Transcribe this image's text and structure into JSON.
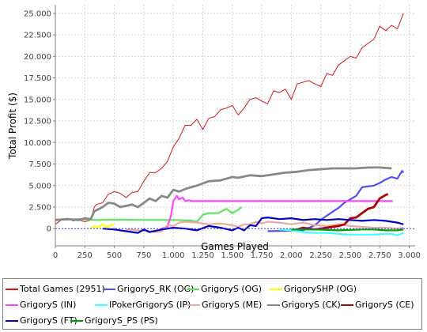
{
  "chart_data": {
    "type": "line",
    "title": "",
    "xlabel": "Games Played",
    "ylabel": "Total Profit ($)",
    "xlim": [
      0,
      3050
    ],
    "ylim": [
      -2000,
      26000
    ],
    "x_ticks": [
      0,
      250,
      500,
      750,
      1000,
      1250,
      1500,
      1750,
      2000,
      2250,
      2500,
      2750,
      3000
    ],
    "x_tick_labels": [
      "0",
      "250",
      "500",
      "750",
      "1.000",
      "1.250",
      "1.500",
      "1.750",
      "2.000",
      "2.250",
      "2.500",
      "2.750",
      "3.000"
    ],
    "y_ticks": [
      0,
      2500,
      5000,
      7500,
      10000,
      12500,
      15000,
      17500,
      20000,
      22500,
      25000
    ],
    "y_tick_labels": [
      "0",
      "2.500",
      "5.000",
      "7.500",
      "10.000",
      "12.500",
      "15.000",
      "17.500",
      "20.000",
      "22.500",
      "25.000"
    ],
    "grid": true,
    "legend_position": "bottom",
    "series": [
      {
        "name": "Total Games (2951)",
        "color": "#d91515",
        "width": 1,
        "x": [
          0,
          50,
          100,
          150,
          200,
          250,
          300,
          330,
          350,
          400,
          450,
          500,
          550,
          600,
          650,
          700,
          750,
          800,
          850,
          900,
          950,
          1000,
          1050,
          1100,
          1150,
          1200,
          1250,
          1300,
          1350,
          1400,
          1450,
          1500,
          1550,
          1600,
          1650,
          1700,
          1750,
          1800,
          1850,
          1900,
          1950,
          2000,
          2050,
          2100,
          2150,
          2200,
          2250,
          2300,
          2350,
          2400,
          2450,
          2500,
          2550,
          2600,
          2650,
          2700,
          2750,
          2800,
          2850,
          2900,
          2951
        ],
        "y": [
          500,
          1000,
          1200,
          900,
          1000,
          800,
          1000,
          2500,
          2800,
          3000,
          4000,
          4300,
          4100,
          3600,
          4200,
          4300,
          5500,
          6500,
          6500,
          7000,
          7800,
          9500,
          10500,
          12000,
          12000,
          12700,
          11500,
          12800,
          13000,
          13800,
          14000,
          14300,
          13200,
          14000,
          15000,
          15200,
          14800,
          14500,
          16000,
          15800,
          16200,
          15000,
          16800,
          17000,
          17200,
          16800,
          16500,
          18000,
          17800,
          19000,
          19500,
          20000,
          19800,
          21000,
          21500,
          22000,
          23500,
          23000,
          23600,
          23200,
          25000
        ]
      },
      {
        "name": "GrigoryS_RK (OG)",
        "color": "#5050f0",
        "width": 2.2,
        "x": [
          1800,
          2100,
          2200,
          2250,
          2300,
          2400,
          2450,
          2550,
          2600,
          2700,
          2750,
          2800,
          2850,
          2900,
          2920,
          2940,
          2951
        ],
        "y": [
          -300,
          -200,
          400,
          1000,
          1500,
          2400,
          3000,
          3800,
          4800,
          5000,
          5300,
          5700,
          6000,
          5800,
          6300,
          6700,
          6500
        ]
      },
      {
        "name": "GrigoryS (OG)",
        "color": "#5ee65e",
        "width": 2.2,
        "x": [
          0,
          100,
          200,
          300,
          350,
          500,
          800,
          1000,
          1150,
          1200,
          1250,
          1300,
          1380,
          1450,
          1500,
          1550,
          1580
        ],
        "y": [
          1000,
          1050,
          1100,
          1050,
          1000,
          1050,
          1000,
          1000,
          950,
          800,
          1600,
          1800,
          1800,
          2300,
          1800,
          2200,
          2500
        ]
      },
      {
        "name": "GrigorySHP (OG)",
        "color": "#ffff00",
        "width": 2.2,
        "x": [
          300,
          330,
          360,
          400,
          430,
          460,
          490
        ],
        "y": [
          0,
          300,
          100,
          500,
          200,
          300,
          500
        ]
      },
      {
        "name": "GrigoryS (IN)",
        "color": "#ff44ff",
        "width": 2.2,
        "x": [
          900,
          950,
          980,
          1000,
          1030,
          1050,
          1080,
          1100,
          1130,
          1160,
          1200,
          1400,
          1600,
          1800,
          2000,
          2200,
          2400,
          2600,
          2860
        ],
        "y": [
          0,
          200,
          1500,
          3200,
          3800,
          3400,
          3600,
          3200,
          3300,
          3200,
          3200,
          3200,
          3200,
          3200,
          3200,
          3200,
          3200,
          3200,
          3200
        ]
      },
      {
        "name": "IPokerGrigoryS (IP)",
        "color": "#44ffff",
        "width": 2.2,
        "x": [
          1900,
          2000,
          2100,
          2200,
          2300,
          2400,
          2500,
          2600,
          2700,
          2800,
          2850,
          2900,
          2951
        ],
        "y": [
          -100,
          -200,
          -400,
          -500,
          -500,
          -600,
          -700,
          -700,
          -700,
          -600,
          -600,
          -800,
          -500
        ]
      },
      {
        "name": "GrigoryS (ME)",
        "color": "#e8aaa0",
        "width": 2.2,
        "x": [
          600,
          700,
          800,
          850,
          900,
          950,
          1000,
          1050,
          1100,
          1200,
          1300,
          1400,
          1500,
          1550,
          1600,
          1650,
          1700,
          1750,
          1800,
          1900,
          2000,
          2100,
          2200,
          2300,
          2400,
          2500,
          2600,
          2700,
          2800,
          2900,
          2951
        ],
        "y": [
          -100,
          -200,
          -300,
          -400,
          -300,
          400,
          300,
          700,
          800,
          700,
          500,
          600,
          400,
          200,
          500,
          500,
          800,
          600,
          800,
          700,
          500,
          700,
          400,
          300,
          500,
          300,
          200,
          100,
          100,
          0,
          100
        ]
      },
      {
        "name": "GrigoryS (CK)",
        "color": "#888888",
        "width": 2.8,
        "x": [
          0,
          100,
          200,
          250,
          300,
          330,
          400,
          450,
          500,
          550,
          650,
          700,
          800,
          850,
          900,
          950,
          1000,
          1050,
          1100,
          1150,
          1200,
          1300,
          1400,
          1500,
          1550,
          1650,
          1750,
          1850,
          1950,
          2050,
          2150,
          2250,
          2350,
          2450,
          2550,
          2650,
          2750,
          2851
        ],
        "y": [
          1000,
          1100,
          1000,
          1200,
          1100,
          2000,
          2500,
          3000,
          2900,
          2500,
          2800,
          2500,
          3500,
          3200,
          3800,
          3600,
          4500,
          4300,
          4600,
          4800,
          5000,
          5500,
          5600,
          6000,
          5900,
          6200,
          6100,
          6300,
          6500,
          6600,
          6800,
          6900,
          7000,
          7000,
          7000,
          7100,
          7100,
          7000
        ]
      },
      {
        "name": "GrigoryS (CE)",
        "color": "#b00000",
        "width": 2.8,
        "x": [
          2050,
          2100,
          2150,
          2200,
          2250,
          2300,
          2400,
          2450,
          2500,
          2550,
          2600,
          2650,
          2700,
          2750,
          2800,
          2820
        ],
        "y": [
          -100,
          100,
          0,
          -100,
          0,
          100,
          300,
          500,
          1200,
          1300,
          1800,
          2300,
          2500,
          3500,
          3900,
          4000
        ]
      },
      {
        "name": "GrigoryS (FT)",
        "color": "#0000c0",
        "width": 2.2,
        "x": [
          400,
          500,
          600,
          700,
          750,
          800,
          900,
          1000,
          1100,
          1200,
          1300,
          1400,
          1500,
          1550,
          1600,
          1650,
          1700,
          1750,
          1800,
          1900,
          2000,
          2100,
          2200,
          2300,
          2400,
          2500,
          2600,
          2700,
          2800,
          2900,
          2951
        ],
        "y": [
          0,
          -100,
          -300,
          -500,
          -100,
          -400,
          -100,
          100,
          0,
          -200,
          300,
          100,
          -200,
          100,
          -200,
          400,
          300,
          1200,
          1300,
          1100,
          1200,
          1000,
          1100,
          1000,
          1100,
          1000,
          900,
          1000,
          900,
          700,
          500
        ]
      },
      {
        "name": "GrigoryS_PS (PS)",
        "color": "#00a000",
        "width": 2.2,
        "x": [
          2000,
          2200,
          2400,
          2600,
          2700,
          2800,
          2900,
          2951
        ],
        "y": [
          -100,
          -100,
          -200,
          -100,
          -100,
          -200,
          -200,
          -100
        ]
      }
    ]
  }
}
